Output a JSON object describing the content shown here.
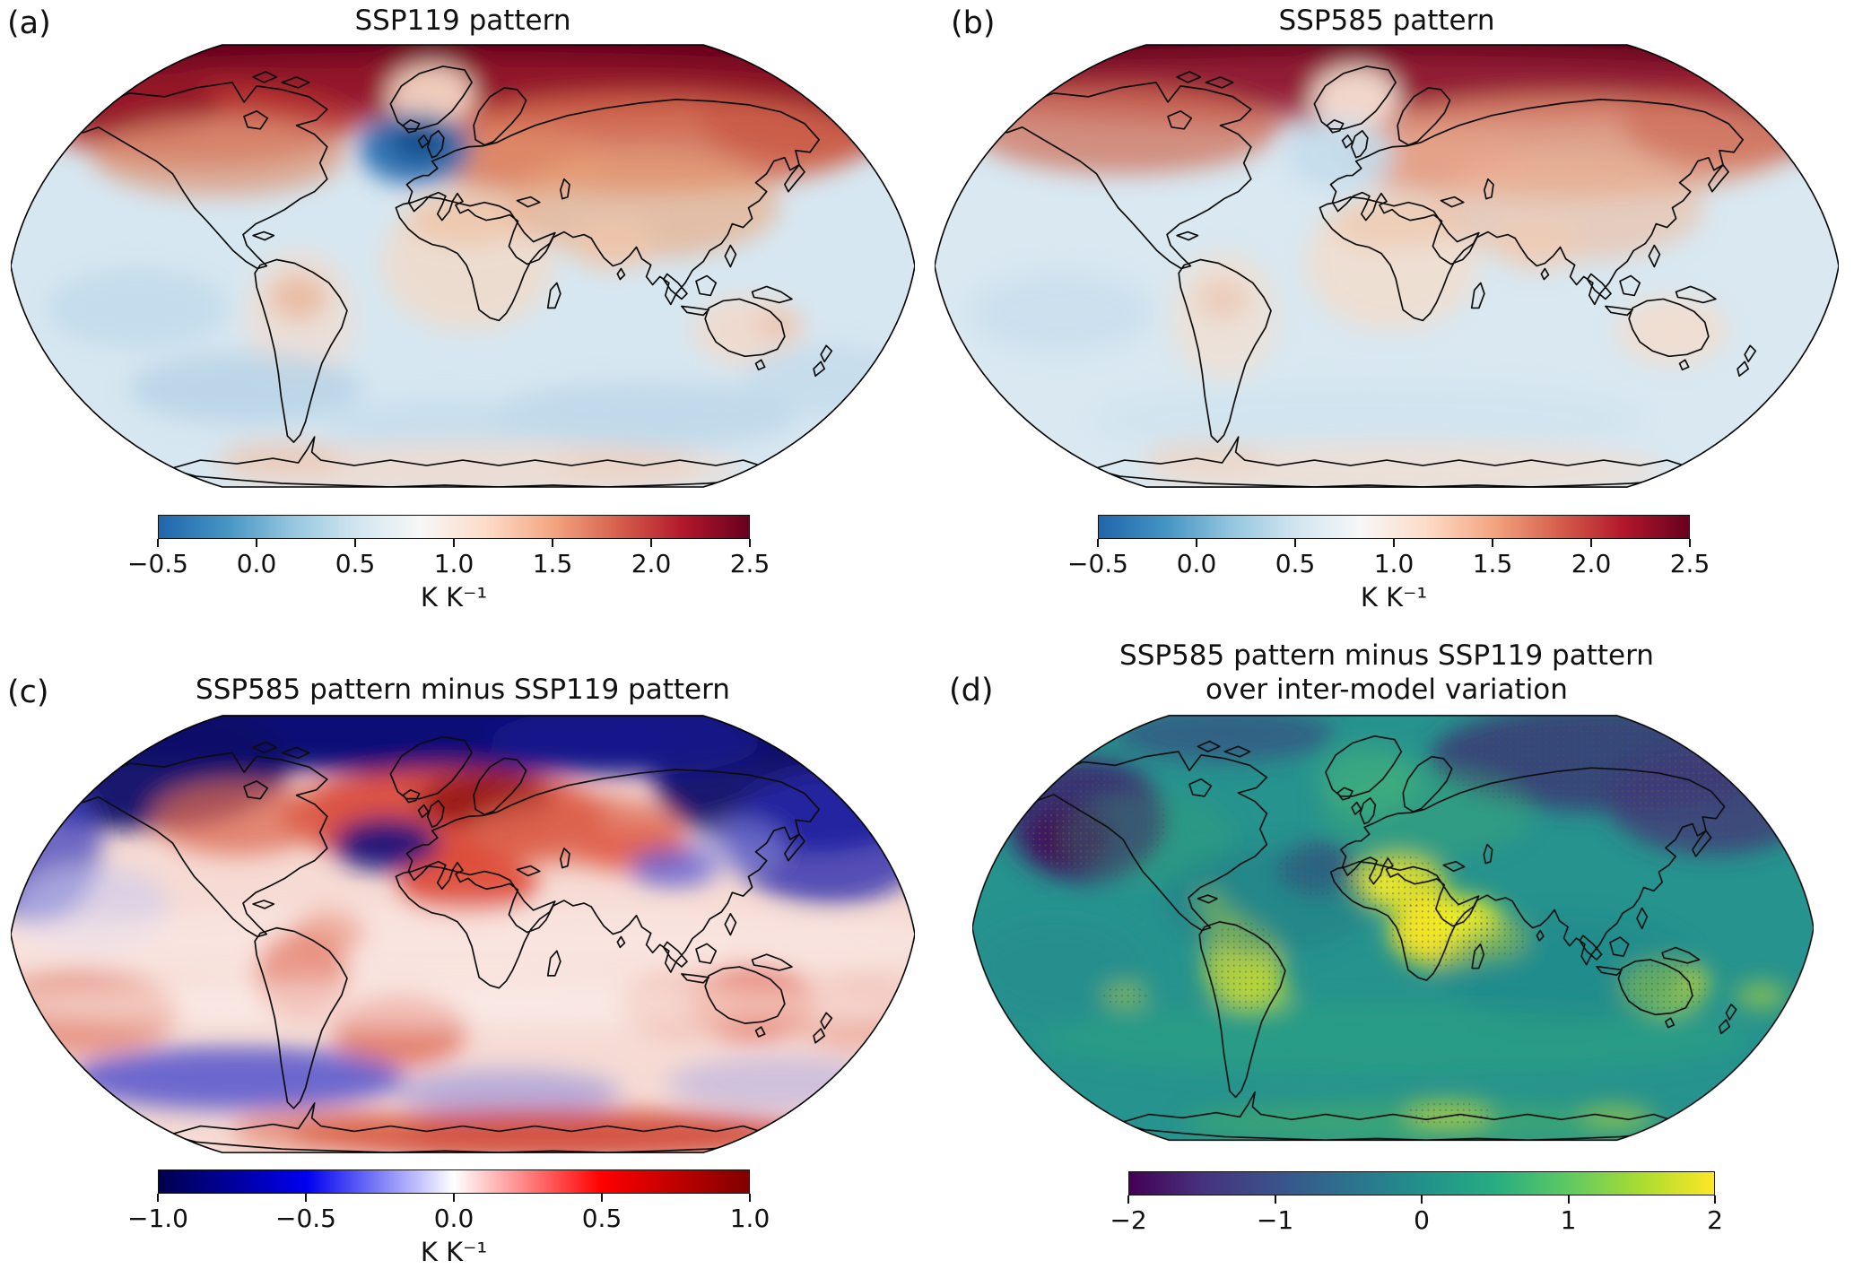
{
  "figure": {
    "background": "#ffffff",
    "unit_label": "K K⁻¹"
  },
  "chart_data": [
    {
      "type": "heatmap",
      "panel_label": "(a)",
      "title": "SSP119 pattern",
      "title_display": "SSP119 pattern",
      "projection": "Robinson world map",
      "colorbar": {
        "colormap": "RdBu_r",
        "vmin": -0.5,
        "vmax": 2.5,
        "tick_values": [
          -0.5,
          0.0,
          0.5,
          1.0,
          1.5,
          2.0,
          2.5
        ],
        "ticks": [
          "−0.5",
          "0.0",
          "0.5",
          "1.0",
          "1.5",
          "2.0",
          "2.5"
        ],
        "unit": "K K⁻¹",
        "gradient": [
          "#2166ac",
          "#4393c3",
          "#92c5de",
          "#d1e5f0",
          "#f7f7f7",
          "#fddbc7",
          "#f4a582",
          "#d6604d",
          "#b2182b",
          "#67001f"
        ]
      },
      "features": [
        "Arctic amplification exceeding 2.5 K K⁻¹ across high northern latitudes",
        "North Atlantic warming hole near −0.5 to 0 K K⁻¹ south of Greenland",
        "Northern continents (Siberia, Canada, Europe) around 1.5–2.5 K K⁻¹",
        "Tropical and southern oceans pale blue, roughly 0.5–0.8 K K⁻¹",
        "Antarctica slightly warm, about 1.0–1.2 K K⁻¹"
      ],
      "map_render": {
        "base_color": "#d7e7f1",
        "blobs": [
          [
            500,
            5,
            540,
            75,
            "#67001f",
            1
          ],
          [
            500,
            62,
            540,
            40,
            "#a62030",
            0.7
          ],
          [
            210,
            95,
            170,
            45,
            "#c0392f",
            0.75
          ],
          [
            140,
            75,
            90,
            35,
            "#8f1426",
            0.85
          ],
          [
            880,
            85,
            120,
            50,
            "#8f1426",
            0.9
          ],
          [
            700,
            115,
            250,
            55,
            "#d3694c",
            0.85
          ],
          [
            560,
            135,
            100,
            38,
            "#e08a68",
            0.8
          ],
          [
            230,
            130,
            140,
            45,
            "#dd9270",
            0.7
          ],
          [
            465,
            62,
            48,
            34,
            "#f4d6c4",
            0.95
          ],
          [
            447,
            122,
            62,
            40,
            "#2d6fb0",
            0.95
          ],
          [
            452,
            114,
            32,
            22,
            "#15508f",
            1
          ],
          [
            505,
            250,
            95,
            75,
            "#f1d9c8",
            0.8
          ],
          [
            505,
            200,
            70,
            30,
            "#edc4a8",
            0.8
          ],
          [
            700,
            185,
            150,
            60,
            "#e8a87f",
            0.65
          ],
          [
            665,
            228,
            48,
            30,
            "#efc6ab",
            0.8
          ],
          [
            320,
            310,
            60,
            75,
            "#f2dcce",
            0.7
          ],
          [
            318,
            288,
            32,
            26,
            "#e8ae8d",
            0.7
          ],
          [
            815,
            325,
            60,
            38,
            "#f2d8c9",
            0.85
          ],
          [
            850,
            318,
            25,
            15,
            "#eab9a0",
            0.7
          ],
          [
            140,
            300,
            100,
            45,
            "#bed8e9",
            0.75
          ],
          [
            260,
            390,
            130,
            40,
            "#b5d2e6",
            0.8
          ],
          [
            700,
            420,
            170,
            38,
            "#bcd6e9",
            0.8
          ],
          [
            480,
            432,
            130,
            30,
            "#c2dbeb",
            0.7
          ],
          [
            900,
            380,
            90,
            40,
            "#c0d9ea",
            0.7
          ],
          [
            520,
            480,
            290,
            30,
            "#efdbd0",
            0.85
          ],
          [
            300,
            468,
            70,
            20,
            "#e9c4b0",
            0.7
          ],
          [
            680,
            475,
            80,
            18,
            "#eccdbb",
            0.6
          ]
        ]
      }
    },
    {
      "type": "heatmap",
      "panel_label": "(b)",
      "title": "SSP585 pattern",
      "title_display": "SSP585 pattern",
      "projection": "Robinson world map",
      "colorbar": {
        "colormap": "RdBu_r",
        "vmin": -0.5,
        "vmax": 2.5,
        "tick_values": [
          -0.5,
          0.0,
          0.5,
          1.0,
          1.5,
          2.0,
          2.5
        ],
        "ticks": [
          "−0.5",
          "0.0",
          "0.5",
          "1.0",
          "1.5",
          "2.0",
          "2.5"
        ],
        "unit": "K K⁻¹",
        "gradient": [
          "#2166ac",
          "#4393c3",
          "#92c5de",
          "#d1e5f0",
          "#f7f7f7",
          "#fddbc7",
          "#f4a582",
          "#d6604d",
          "#b2182b",
          "#67001f"
        ]
      },
      "features": [
        "Arctic amplification exceeding 2.5 K K⁻¹, slightly smoother than SSP119",
        "Weak North Atlantic cool spot, near 0.5 K K⁻¹",
        "Northern continents around 1.3–2.0 K K⁻¹",
        "Tropical and southern oceans around 0.6–0.9 K K⁻¹"
      ],
      "map_render": {
        "base_color": "#d9e8f1",
        "blobs": [
          [
            500,
            5,
            540,
            70,
            "#67001f",
            1
          ],
          [
            500,
            58,
            540,
            40,
            "#a93040",
            0.65
          ],
          [
            210,
            100,
            170,
            50,
            "#cf6a50",
            0.7
          ],
          [
            880,
            90,
            120,
            50,
            "#a12433",
            0.8
          ],
          [
            700,
            118,
            250,
            58,
            "#dd8a69",
            0.75
          ],
          [
            560,
            138,
            100,
            38,
            "#e8a287",
            0.7
          ],
          [
            465,
            64,
            48,
            34,
            "#f6e0d4",
            0.95
          ],
          [
            448,
            128,
            60,
            38,
            "#c3dcec",
            0.9
          ],
          [
            505,
            250,
            95,
            75,
            "#f2dccc",
            0.8
          ],
          [
            505,
            205,
            70,
            30,
            "#eecbb2",
            0.8
          ],
          [
            700,
            188,
            150,
            60,
            "#ecb99c",
            0.6
          ],
          [
            665,
            228,
            48,
            30,
            "#f0ccb5",
            0.8
          ],
          [
            320,
            308,
            58,
            72,
            "#f3decf",
            0.7
          ],
          [
            318,
            290,
            30,
            24,
            "#ecc0a6",
            0.6
          ],
          [
            815,
            325,
            60,
            38,
            "#f3dccd",
            0.85
          ],
          [
            140,
            305,
            100,
            45,
            "#c6ddec",
            0.7
          ],
          [
            480,
            425,
            300,
            40,
            "#cfe2ee",
            0.7
          ],
          [
            520,
            480,
            290,
            30,
            "#f0ddd2",
            0.8
          ],
          [
            300,
            468,
            70,
            20,
            "#ecd0c0",
            0.6
          ]
        ]
      }
    },
    {
      "type": "heatmap",
      "panel_label": "(c)",
      "title": "SSP585 pattern minus SSP119 pattern",
      "title_display": "SSP585 pattern minus SSP119 pattern",
      "projection": "Robinson world map",
      "colorbar": {
        "colormap": "seismic",
        "vmin": -1.0,
        "vmax": 1.0,
        "tick_values": [
          -1.0,
          -0.5,
          0.0,
          0.5,
          1.0
        ],
        "ticks": [
          "−1.0",
          "−0.5",
          "0.0",
          "0.5",
          "1.0"
        ],
        "unit": "K K⁻¹",
        "gradient": [
          "#00004c",
          "#0000f0",
          "#ffffff",
          "#ff0000",
          "#800000"
        ]
      },
      "features": [
        "Strong negative difference (−1 K K⁻¹, dark blue) over Arctic and northern North Pacific",
        "Positive band (+0.5 to +1) over North Atlantic, Europe and Sahara",
        "Localized negative patch over northwest Atlantic and Tibet",
        "Broad weak positive difference (+0.1 to +0.4) over tropics and southern continents",
        "Negative band over Southern Ocean near 55°S, positive over Antarctica"
      ],
      "map_render": {
        "base_color": "#f6dbd4",
        "blobs": [
          [
            500,
            12,
            540,
            60,
            "#0a0f78",
            1
          ],
          [
            140,
            60,
            170,
            75,
            "#090968",
            0.95
          ],
          [
            880,
            75,
            170,
            85,
            "#090968",
            0.95
          ],
          [
            680,
            35,
            150,
            40,
            "#1a1a8e",
            0.8
          ],
          [
            480,
            120,
            180,
            55,
            "#d84433",
            0.9
          ],
          [
            525,
            103,
            75,
            30,
            "#8f0f0f",
            0.85
          ],
          [
            625,
            135,
            120,
            40,
            "#dd6a52",
            0.75
          ],
          [
            250,
            122,
            95,
            42,
            "#dc6a52",
            0.75
          ],
          [
            415,
            152,
            58,
            30,
            "#15157f",
            0.9
          ],
          [
            905,
            145,
            115,
            75,
            "#2a2aad",
            0.8
          ],
          [
            25,
            155,
            75,
            85,
            "#4444bd",
            0.75
          ],
          [
            90,
            225,
            85,
            50,
            "#cacaee",
            0.6
          ],
          [
            505,
            196,
            78,
            36,
            "#dc3f2c",
            0.85
          ],
          [
            690,
            158,
            62,
            26,
            "#e05a47",
            0.75
          ],
          [
            733,
            178,
            48,
            23,
            "#5a5ad4",
            0.75
          ],
          [
            805,
            152,
            52,
            30,
            "#9090dd",
            0.55
          ],
          [
            500,
            262,
            540,
            40,
            "#fceae6",
            0.6
          ],
          [
            322,
            300,
            52,
            52,
            "#e0705a",
            0.65
          ],
          [
            352,
            252,
            40,
            26,
            "#e68570",
            0.55
          ],
          [
            430,
            362,
            75,
            42,
            "#dd604a",
            0.7
          ],
          [
            820,
            330,
            72,
            42,
            "#df5843",
            0.75
          ],
          [
            735,
            332,
            62,
            36,
            "#eb9b89",
            0.55
          ],
          [
            80,
            342,
            105,
            48,
            "#e0745f",
            0.65
          ],
          [
            940,
            345,
            80,
            40,
            "#e8907c",
            0.5
          ],
          [
            500,
            332,
            540,
            26,
            "#fdf5f3",
            0.5
          ],
          [
            250,
            416,
            185,
            36,
            "#4a4acc",
            0.8
          ],
          [
            550,
            432,
            125,
            26,
            "#8585da",
            0.55
          ],
          [
            850,
            422,
            125,
            30,
            "#a0a0e4",
            0.45
          ],
          [
            600,
            480,
            290,
            28,
            "#cc3c28",
            0.85
          ],
          [
            350,
            474,
            105,
            22,
            "#dd6c52",
            0.65
          ]
        ]
      }
    },
    {
      "type": "heatmap",
      "panel_label": "(d)",
      "title": "SSP585 pattern minus SSP119 pattern over inter-model variation",
      "title_display": "SSP585 pattern minus SSP119 pattern\nover inter-model variation",
      "projection": "Robinson world map",
      "colorbar": {
        "colormap": "viridis",
        "vmin": -2,
        "vmax": 2,
        "tick_values": [
          -2,
          -1,
          0,
          1,
          2
        ],
        "ticks": [
          "−2",
          "−1",
          "0",
          "1",
          "2"
        ],
        "unit": "",
        "gradient": [
          "#440154",
          "#46327e",
          "#3b528b",
          "#2c728e",
          "#21918c",
          "#27ad81",
          "#5ec962",
          "#aadc32",
          "#fde725"
        ]
      },
      "features": [
        "Ratio mostly near 0 (teal) over the oceans",
        "Values near −2 (dark purple, stippled) over northern North Pacific and Siberian Arctic",
        "Values of +1 to +2 (yellow, stippled) over Sahara, East Africa, South America and Australia",
        "Stippling marks regions where the difference exceeds inter-model variation"
      ],
      "map_render": {
        "base_color": "#27938e",
        "blobs": [
          [
            135,
            128,
            95,
            72,
            "#3c2a70",
            0.9,
            1
          ],
          [
            118,
            148,
            48,
            36,
            "#440154",
            0.95,
            1
          ],
          [
            755,
            55,
            210,
            62,
            "#3a3a76",
            0.85,
            1
          ],
          [
            880,
            105,
            125,
            62,
            "#413878",
            0.8,
            1
          ],
          [
            300,
            28,
            130,
            32,
            "#3d3d7e",
            0.55
          ],
          [
            410,
            185,
            48,
            30,
            "#3b3178",
            0.7,
            1
          ],
          [
            540,
            118,
            125,
            52,
            "#3aa878",
            0.45
          ],
          [
            205,
            148,
            105,
            52,
            "#34a276",
            0.35
          ],
          [
            470,
            80,
            60,
            40,
            "#49b877",
            0.5
          ],
          [
            505,
            200,
            58,
            32,
            "#e0df28",
            0.9,
            1
          ],
          [
            488,
            206,
            26,
            16,
            "#f5ee2a",
            0.9
          ],
          [
            558,
            256,
            62,
            42,
            "#fde725",
            0.95,
            1
          ],
          [
            588,
            244,
            42,
            26,
            "#eef023",
            0.8
          ],
          [
            620,
            265,
            40,
            24,
            "#d8e42c",
            0.7,
            1
          ],
          [
            322,
            298,
            46,
            52,
            "#d8e02c",
            0.75,
            1
          ],
          [
            300,
            250,
            26,
            20,
            "#e8e82a",
            0.7
          ],
          [
            282,
            222,
            16,
            12,
            "#f0ee28",
            0.75
          ],
          [
            345,
            330,
            35,
            25,
            "#c2dc30",
            0.6
          ],
          [
            822,
            322,
            52,
            32,
            "#b6d834",
            0.75,
            1
          ],
          [
            852,
            310,
            22,
            13,
            "#e6e628",
            0.65
          ],
          [
            500,
            382,
            420,
            42,
            "#2da57f",
            0.5
          ],
          [
            540,
            480,
            290,
            26,
            "#42ae6b",
            0.6
          ],
          [
            565,
            470,
            52,
            15,
            "#dee22c",
            0.6,
            1
          ],
          [
            765,
            472,
            42,
            13,
            "#cad830",
            0.5
          ],
          [
            350,
            222,
            125,
            62,
            "#1f7e86",
            0.5
          ],
          [
            705,
            302,
            155,
            62,
            "#1f8289",
            0.4
          ],
          [
            100,
            302,
            105,
            62,
            "#23898b",
            0.4
          ],
          [
            182,
            332,
            26,
            13,
            "#d8e02c",
            0.5,
            1
          ],
          [
            938,
            332,
            32,
            16,
            "#cfe02e",
            0.5
          ]
        ]
      }
    }
  ]
}
